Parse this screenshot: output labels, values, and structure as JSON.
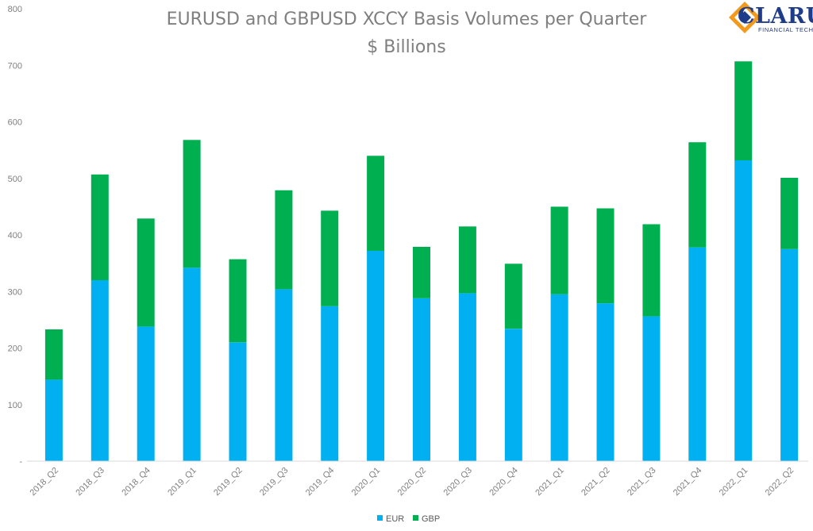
{
  "chart_data": {
    "type": "bar",
    "stacked": true,
    "title": "EURUSD and GBPUSD XCCY Basis Volumes per Quarter",
    "subtitle": "$ Billions",
    "categories": [
      "2018_Q2",
      "2018_Q3",
      "2018_Q4",
      "2019_Q1",
      "2019_Q2",
      "2019_Q3",
      "2019_Q4",
      "2020_Q1",
      "2020_Q2",
      "2020_Q3",
      "2020_Q4",
      "2021_Q1",
      "2021_Q2",
      "2021_Q3",
      "2021_Q4",
      "2022_Q1",
      "2022_Q2"
    ],
    "series": [
      {
        "name": "EUR",
        "color": "#00b0f0",
        "values": [
          144,
          320,
          238,
          342,
          210,
          304,
          274,
          372,
          288,
          297,
          234,
          295,
          279,
          256,
          378,
          532,
          375
        ]
      },
      {
        "name": "GBP",
        "color": "#00b050",
        "values": [
          89,
          187,
          191,
          226,
          147,
          175,
          169,
          168,
          91,
          118,
          115,
          155,
          168,
          163,
          186,
          175,
          126
        ]
      }
    ],
    "ylim": [
      0,
      800
    ],
    "yticks": [
      "-",
      "100",
      "200",
      "300",
      "400",
      "500",
      "600",
      "700",
      "800"
    ],
    "grid": false,
    "legend": "bottom-center"
  },
  "logo": {
    "word": "CLARUS",
    "tagline": "FINANCIAL TECHNOLOGY",
    "colors": {
      "orange": "#f29a1d",
      "blue": "#1f3c88",
      "teal": "#3fb4c9"
    }
  }
}
